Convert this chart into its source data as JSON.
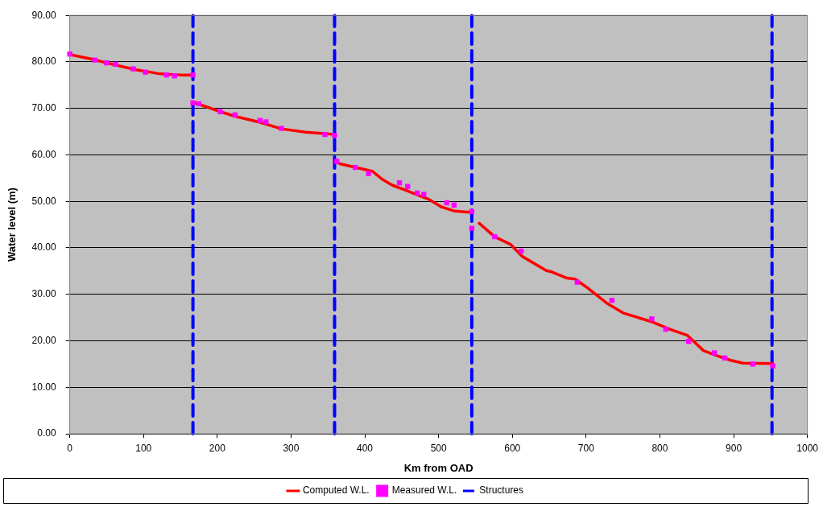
{
  "chart_data": {
    "type": "line",
    "xlabel": "Km from OAD",
    "ylabel": "Water level (m)",
    "xlim": [
      0,
      1000
    ],
    "xticks": [
      0,
      100,
      200,
      300,
      400,
      500,
      600,
      700,
      800,
      900,
      1000
    ],
    "ylim": [
      0,
      90
    ],
    "yticks": [
      {
        "value": 0,
        "label": "0.00"
      },
      {
        "value": 10,
        "label": "10.00"
      },
      {
        "value": 20,
        "label": "20.00"
      },
      {
        "value": 30,
        "label": "30.00"
      },
      {
        "value": 40,
        "label": "40.00"
      },
      {
        "value": 50,
        "label": "50.00"
      },
      {
        "value": 60,
        "label": "60.00"
      },
      {
        "value": 70,
        "label": "70.00"
      },
      {
        "value": 80,
        "label": "80.00"
      },
      {
        "value": 90,
        "label": "90.00"
      }
    ],
    "grid": "y",
    "legend": "bottom",
    "series": [
      {
        "name": "Computed W.L.",
        "type": "line",
        "color": "#ff0000",
        "marker": "none",
        "line_style": "solid",
        "x": [
          0,
          30,
          60,
          90,
          120,
          150,
          167,
          null,
          168,
          175,
          204,
          224,
          258,
          287,
          320,
          359,
          null,
          360,
          366,
          410,
          424,
          437,
          457,
          486,
          504,
          522,
          545,
          null,
          555,
          576,
          598,
          613,
          646,
          652,
          674,
          685,
          700,
          728,
          750,
          787,
          815,
          837,
          859,
          874,
          896,
          913,
          953
        ],
        "values": [
          81.6,
          80.6,
          79.4,
          78.3,
          77.5,
          77.2,
          77.2,
          null,
          71.3,
          70.9,
          69.3,
          68.3,
          67.0,
          65.6,
          64.9,
          64.4,
          null,
          58.6,
          58.1,
          56.5,
          54.7,
          53.5,
          52.3,
          50.5,
          48.8,
          47.9,
          47.6,
          null,
          45.3,
          42.4,
          40.7,
          38.2,
          35.1,
          34.9,
          33.5,
          33.3,
          31.6,
          28.1,
          26.0,
          24.2,
          22.4,
          21.2,
          17.9,
          17.0,
          15.8,
          15.2,
          15.1
        ]
      },
      {
        "name": "Measured W.L.",
        "type": "scatter",
        "color": "#ff00ff",
        "marker": "square",
        "x": [
          0,
          34,
          50,
          62,
          86,
          102.5,
          131,
          142,
          167,
          167,
          175,
          204,
          224,
          258,
          266,
          287,
          346,
          359,
          362,
          387,
          405,
          447,
          458,
          471,
          480,
          511,
          521,
          545,
          545,
          576,
          612,
          688,
          735,
          789,
          808,
          839,
          874,
          888,
          926,
          953
        ],
        "values": [
          81.7,
          80.4,
          79.8,
          79.5,
          78.5,
          77.8,
          77.2,
          77.0,
          77.2,
          71.2,
          71.0,
          69.3,
          68.6,
          67.4,
          67.1,
          65.7,
          64.4,
          64.2,
          58.6,
          57.3,
          56.0,
          54.0,
          53.2,
          51.8,
          51.5,
          49.7,
          49.2,
          47.8,
          44.2,
          42.4,
          39.3,
          32.6,
          28.7,
          24.7,
          22.5,
          19.9,
          17.4,
          16.3,
          15.0,
          14.6
        ]
      },
      {
        "name": "Structures",
        "type": "line",
        "color": "#0000ff",
        "marker": "none",
        "line_style": "dashed",
        "x": [
          167,
          167,
          null,
          359,
          359,
          null,
          545,
          545,
          null,
          952,
          952
        ],
        "values": [
          0,
          90,
          null,
          0,
          90,
          null,
          0,
          90,
          null,
          0,
          90
        ]
      }
    ]
  }
}
